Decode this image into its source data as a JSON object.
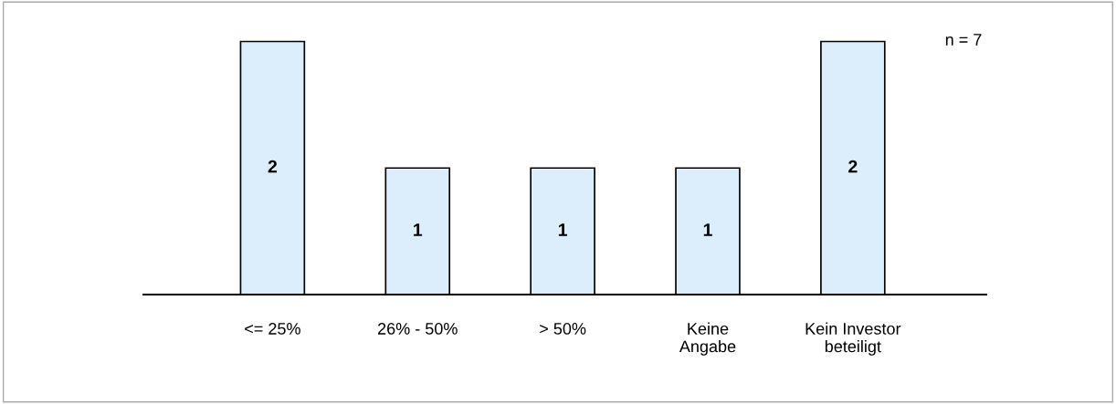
{
  "chart_data": {
    "type": "bar",
    "categories": [
      "<= 25%",
      "26% - 50%",
      "> 50%",
      "Keine\nAngabe",
      "Kein Investor\nbeteiligt"
    ],
    "values": [
      2,
      1,
      1,
      1,
      2
    ],
    "color": "#dcedfb",
    "data_labels": true,
    "annotations": [
      "n = 7"
    ]
  }
}
